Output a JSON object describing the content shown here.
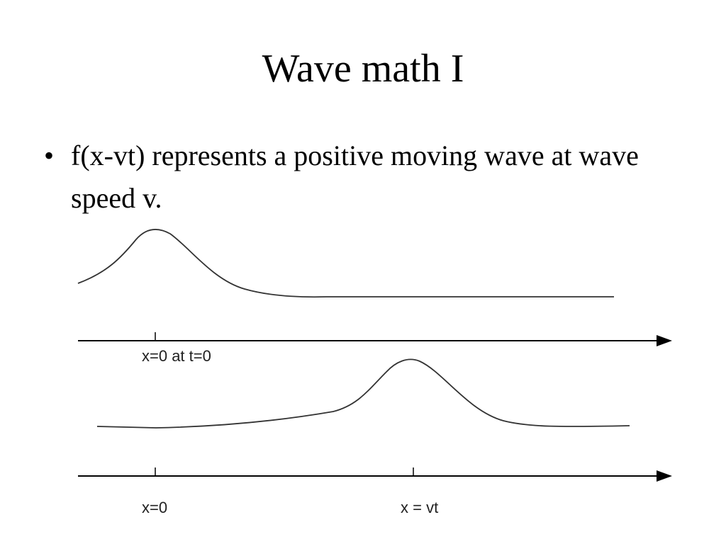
{
  "slide": {
    "title": "Wave math I",
    "bullets": [
      {
        "glyph": "•",
        "text": "f(x-vt) represents a positive moving wave at wave speed v."
      }
    ]
  },
  "diagram": {
    "top_axis": {
      "tick_label": "x=0 at t=0"
    },
    "bottom_axis": {
      "tick_labels": [
        "x=0",
        "x = vt"
      ]
    },
    "colors": {
      "line": "#333333",
      "arrow": "#000000"
    }
  }
}
